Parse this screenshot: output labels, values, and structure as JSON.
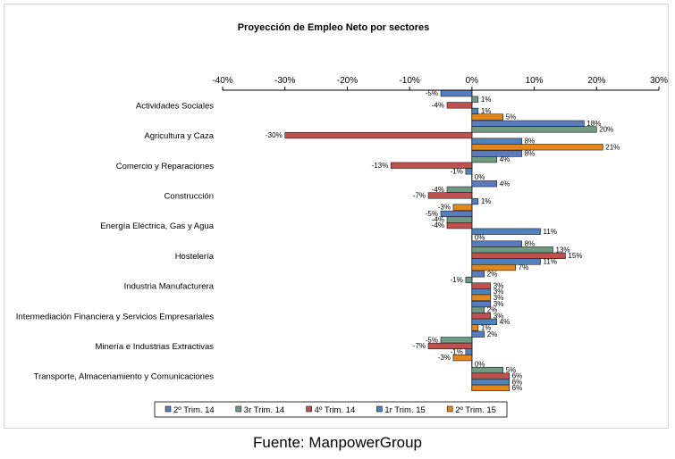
{
  "chart_data": {
    "type": "bar",
    "orientation": "horizontal",
    "title": "Proyección de Empleo Neto por sectores",
    "xlim": [
      -40,
      30
    ],
    "ticks": [
      -40,
      -30,
      -20,
      -10,
      0,
      10,
      20,
      30
    ],
    "tick_labels": [
      "-40%",
      "-30%",
      "-20%",
      "-10%",
      "0%",
      "10%",
      "20%",
      "30%"
    ],
    "grid": false,
    "legend_position": "bottom",
    "categories": [
      "Actividades Sociales",
      "Agricultura y Caza",
      "Comercio y Reparaciones",
      "Construcción",
      "Energía Eléctrica, Gas y Agua",
      "Hostelería",
      "Industria Manufacturera",
      "Intermediación Financiera y Servicios Empresariales",
      "Minería e Industrias Extractivas",
      "Transporte, Almacenamiento y Comunicaciones"
    ],
    "series": [
      {
        "name": "2º Trim. 14",
        "color": "#5b7bbf",
        "values": [
          -5,
          18,
          8,
          4,
          -5,
          8,
          2,
          3,
          2,
          0
        ]
      },
      {
        "name": "3r Trim. 14",
        "color": "#6f9a84",
        "values": [
          1,
          20,
          4,
          -4,
          -4,
          13,
          -1,
          2,
          -5,
          5
        ]
      },
      {
        "name": "4º Trim. 14",
        "color": "#c0504d",
        "values": [
          -4,
          -30,
          -13,
          -7,
          -4,
          15,
          3,
          3,
          -7,
          6
        ]
      },
      {
        "name": "1r Trim. 15",
        "color": "#4f81bd",
        "values": [
          1,
          8,
          -1,
          1,
          11,
          11,
          3,
          4,
          -1,
          6
        ]
      },
      {
        "name": "2º Trim. 15",
        "color": "#e3871a",
        "values": [
          5,
          21,
          0,
          -3,
          0,
          7,
          3,
          1,
          -3,
          6
        ]
      }
    ]
  },
  "source": "Fuente: ManpowerGroup"
}
